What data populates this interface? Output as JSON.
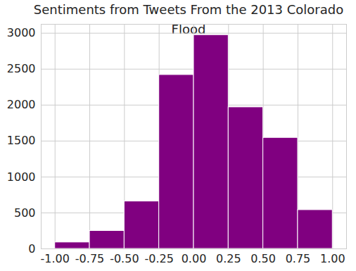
{
  "chart_data": {
    "type": "histogram",
    "title": "Sentiments from Tweets From the 2013 Colorado Flood",
    "bins": [
      -1,
      -0.75,
      -0.5,
      -0.25,
      0,
      0.25,
      0.5,
      0.75,
      1
    ],
    "values": [
      90,
      250,
      660,
      2420,
      2975,
      1970,
      1545,
      540
    ],
    "color": "#800080",
    "xlim": [
      -1.1,
      1.1
    ],
    "xticks": [
      {
        "value": -1,
        "label": "-1.00"
      },
      {
        "value": -0.75,
        "label": "-0.75"
      },
      {
        "value": -0.5,
        "label": "-0.50"
      },
      {
        "value": -0.25,
        "label": "-0.25"
      },
      {
        "value": 0,
        "label": "0.00"
      },
      {
        "value": 0.25,
        "label": "0.25"
      },
      {
        "value": 0.5,
        "label": "0.50"
      },
      {
        "value": 0.75,
        "label": "0.75"
      },
      {
        "value": 1,
        "label": "1.00"
      }
    ],
    "ylim": [
      0,
      3124
    ],
    "yticks": [
      0,
      500,
      1000,
      1500,
      2000,
      2500,
      3000
    ],
    "grid": true
  }
}
